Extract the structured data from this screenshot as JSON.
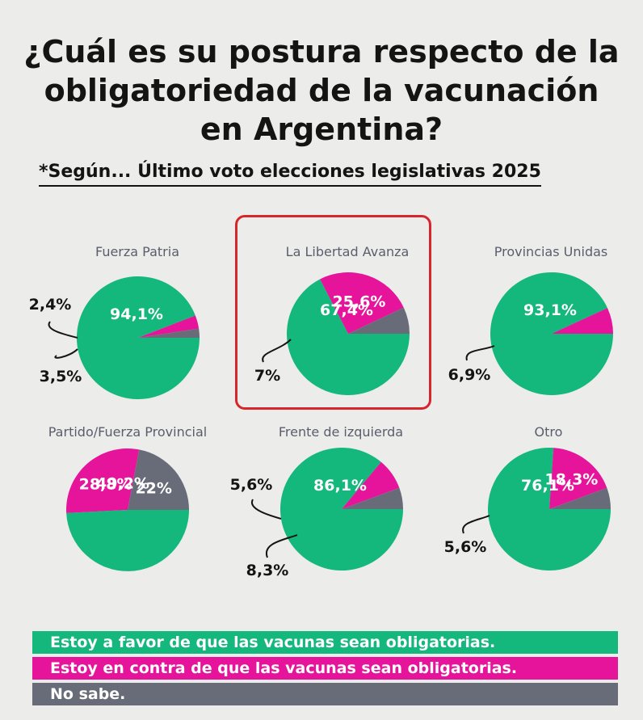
{
  "title_lines": [
    "¿Cuál es su postura respecto de la",
    "obligatoriedad de la vacunación",
    "en Argentina?"
  ],
  "subtitle": "*Según...   Último voto elecciones legislativas 2025",
  "colors": {
    "favor": "#14b77c",
    "contra": "#e5149a",
    "nosabe": "#686c78",
    "highlight": "#d6262c"
  },
  "legend": [
    {
      "key": "favor",
      "label": "Estoy a favor de que las vacunas sean obligatorias."
    },
    {
      "key": "contra",
      "label": "Estoy en contra de que las vacunas sean obligatorias."
    },
    {
      "key": "nosabe",
      "label": "No sabe."
    }
  ],
  "chart_data": [
    {
      "type": "pie",
      "title": "Fuerza Patria",
      "highlighted": false,
      "series": [
        {
          "name": "favor",
          "value": 94.1,
          "label": "94,1%"
        },
        {
          "name": "contra",
          "value": 3.5,
          "label": "3,5%"
        },
        {
          "name": "nosabe",
          "value": 2.4,
          "label": "2,4%"
        }
      ]
    },
    {
      "type": "pie",
      "title": "La Libertad Avanza",
      "highlighted": true,
      "series": [
        {
          "name": "favor",
          "value": 67.4,
          "label": "67,4%"
        },
        {
          "name": "contra",
          "value": 25.6,
          "label": "25,6%"
        },
        {
          "name": "nosabe",
          "value": 7,
          "label": "7%"
        }
      ]
    },
    {
      "type": "pie",
      "title": "Provincias Unidas",
      "highlighted": false,
      "series": [
        {
          "name": "favor",
          "value": 93.1,
          "label": "93,1%"
        },
        {
          "name": "contra",
          "value": 6.9,
          "label": "6,9%"
        }
      ]
    },
    {
      "type": "pie",
      "title": "Partido/Fuerza Provincial",
      "highlighted": false,
      "series": [
        {
          "name": "favor",
          "value": 49.2,
          "label": "49,2%"
        },
        {
          "name": "contra",
          "value": 28.8,
          "label": "28,8%"
        },
        {
          "name": "nosabe",
          "value": 22,
          "label": "22%"
        }
      ]
    },
    {
      "type": "pie",
      "title": "Frente de izquierda",
      "highlighted": false,
      "series": [
        {
          "name": "favor",
          "value": 86.1,
          "label": "86,1%"
        },
        {
          "name": "contra",
          "value": 8.3,
          "label": "8,3%"
        },
        {
          "name": "nosabe",
          "value": 5.6,
          "label": "5,6%"
        }
      ]
    },
    {
      "type": "pie",
      "title": "Otro",
      "highlighted": false,
      "series": [
        {
          "name": "favor",
          "value": 76.1,
          "label": "76,1%"
        },
        {
          "name": "contra",
          "value": 18.3,
          "label": "18,3%"
        },
        {
          "name": "nosabe",
          "value": 5.6,
          "label": "5,6%"
        }
      ]
    }
  ]
}
